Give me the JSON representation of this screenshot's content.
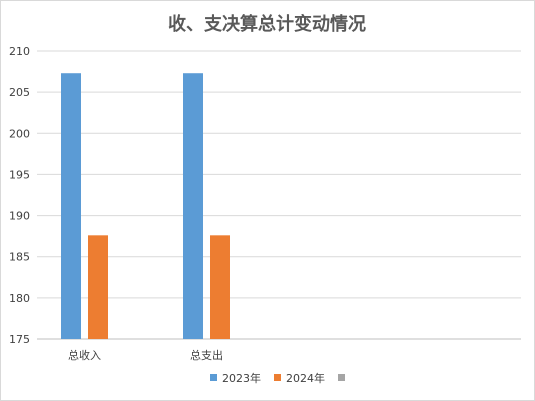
{
  "chart_data": {
    "type": "bar",
    "title": "收、支决算总计变动情况",
    "xlabel": "",
    "ylabel": "",
    "categories": [
      "总收入",
      "总支出"
    ],
    "series": [
      {
        "name": "2023年",
        "color": "#5b9bd5",
        "values": [
          207.3,
          207.3
        ]
      },
      {
        "name": "2024年",
        "color": "#ed7d31",
        "values": [
          187.6,
          187.6
        ]
      },
      {
        "name": "",
        "color": "#a5a5a5",
        "values": [
          null,
          null
        ]
      }
    ],
    "ylim": [
      175,
      210
    ],
    "yticks": [
      "175",
      "180",
      "185",
      "190",
      "195",
      "200",
      "205",
      "210"
    ],
    "grid": true,
    "legend": "bottom"
  }
}
